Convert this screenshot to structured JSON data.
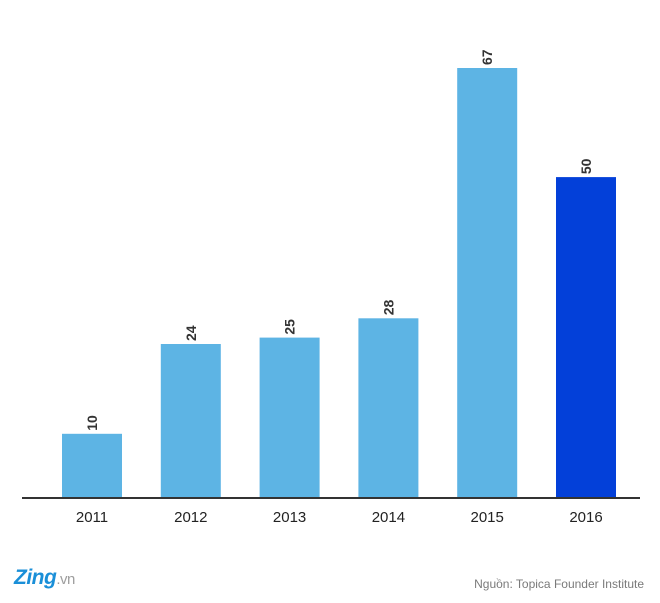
{
  "chart_data": {
    "type": "bar",
    "categories": [
      "2011",
      "2012",
      "2013",
      "2014",
      "2015",
      "2016"
    ],
    "values": [
      10,
      24,
      25,
      28,
      67,
      50
    ],
    "bar_colors": [
      "#5db4e4",
      "#5db4e4",
      "#5db4e4",
      "#5db4e4",
      "#5db4e4",
      "#0340d9"
    ],
    "title": "",
    "xlabel": "",
    "ylabel": "",
    "ylim": [
      0,
      67
    ],
    "grid": false,
    "data_labels": true
  },
  "logo": {
    "brand": "Zing",
    "tld": ".vn"
  },
  "source": "Nguồn: Topica Founder Institute",
  "colors": {
    "axis": "#333333",
    "text": "#222222",
    "logo": "#1a8fd8"
  }
}
